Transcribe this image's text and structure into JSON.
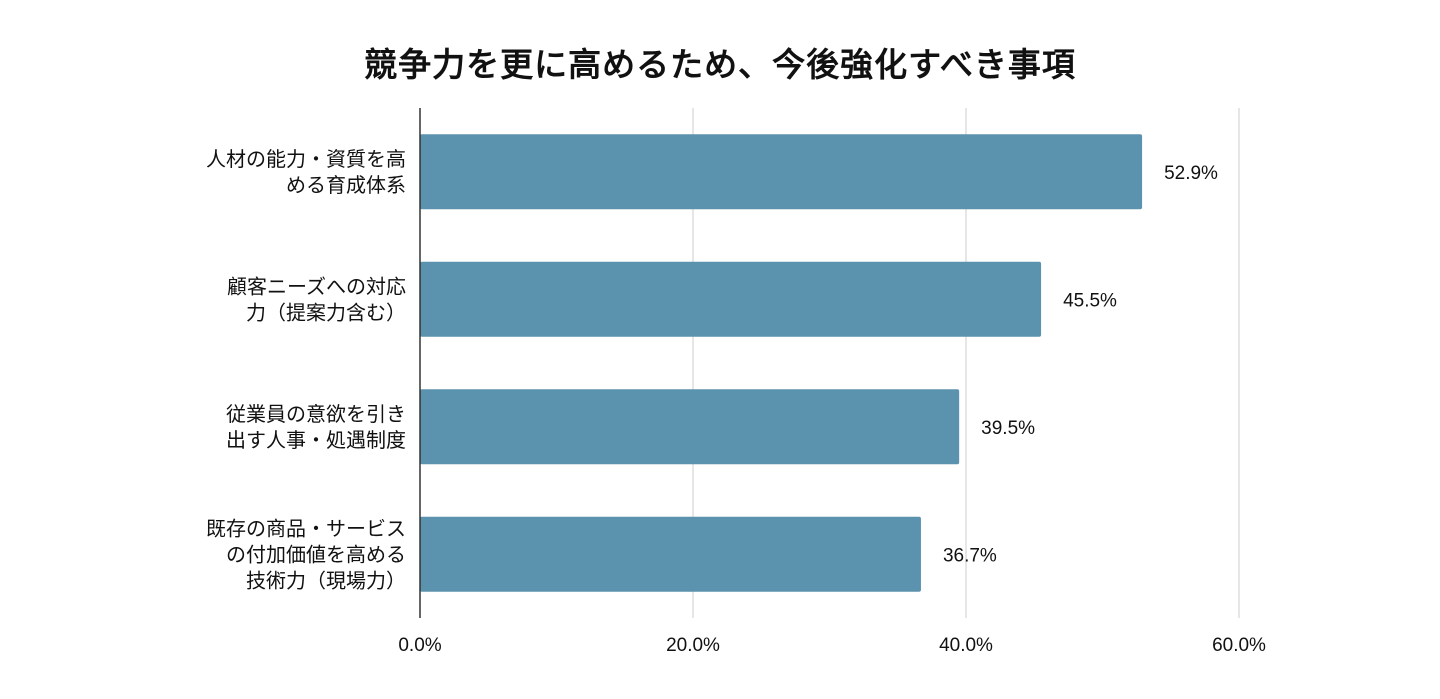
{
  "chart_data": {
    "type": "bar",
    "orientation": "horizontal",
    "title": "競争力を更に高めるため、今後強化すべき事項",
    "categories": [
      [
        "人材の能力・資質を高",
        "める育成体系"
      ],
      [
        "顧客ニーズへの対応",
        "力（提案力含む）"
      ],
      [
        "従業員の意欲を引き",
        "出す人事・処遇制度"
      ],
      [
        "既存の商品・サービス",
        "の付加価値を高める",
        "技術力（現場力）"
      ]
    ],
    "values": [
      52.9,
      45.5,
      39.5,
      36.7
    ],
    "value_labels": [
      "52.9%",
      "45.5%",
      "39.5%",
      "36.7%"
    ],
    "xlim": [
      0,
      60
    ],
    "x_ticks": [
      0,
      20,
      40,
      60
    ],
    "x_tick_labels": [
      "0.0%",
      "20.0%",
      "40.0%",
      "60.0%"
    ],
    "grid": "vertical",
    "legend": "none",
    "bar_color": "#5b92ae"
  }
}
